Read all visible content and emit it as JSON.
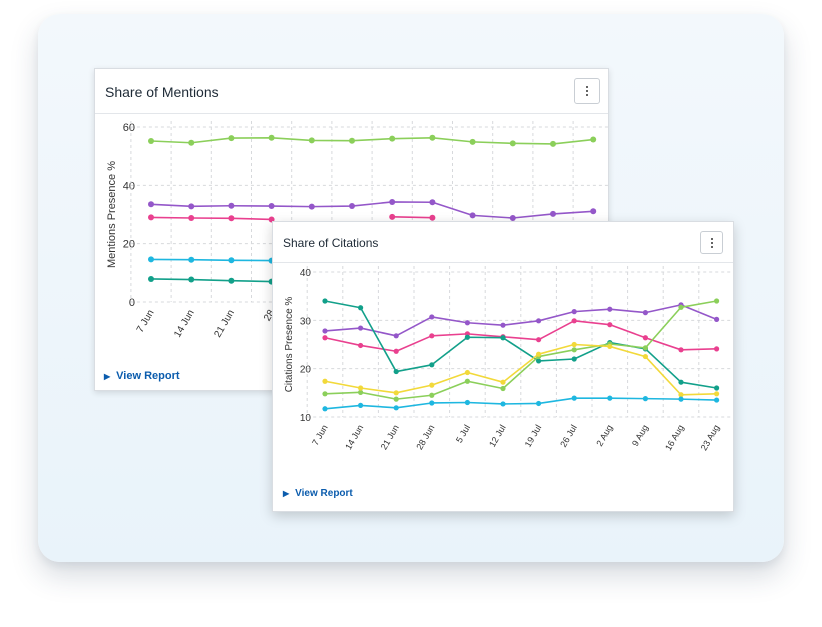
{
  "mentions": {
    "title": "Share of Mentions",
    "view_report": "View Report",
    "menu_icon": "kebab-menu-icon",
    "chart_data": {
      "type": "line",
      "ylabel": "Mentions Presence %",
      "xlabel": "",
      "ylim": [
        0,
        60
      ],
      "yticks": [
        0,
        20,
        40,
        60
      ],
      "grid": true,
      "categories": [
        "7 Jun",
        "14 Jun",
        "21 Jun",
        "28 Jun",
        "5 Jul",
        "12 Jul",
        "19 Jul",
        "26 Jul",
        "2 Aug",
        "9 Aug",
        "16 Aug",
        "23 Aug"
      ],
      "visible_tick_labels": [
        "7 Jun",
        "14 Jun",
        "21 Jun",
        "28"
      ],
      "series": [
        {
          "color": "#8bcf5a",
          "values": [
            55.2,
            54.6,
            56.2,
            56.3,
            55.4,
            55.3,
            56.0,
            56.3,
            54.9,
            54.4,
            54.2,
            55.7
          ]
        },
        {
          "color": "#9457c9",
          "values": [
            33.5,
            32.8,
            33.0,
            32.9,
            32.7,
            32.9,
            34.3,
            34.2,
            29.7,
            28.8,
            30.2,
            31.1
          ]
        },
        {
          "color": "#e9408f",
          "values": [
            29.0,
            28.8,
            28.7,
            28.3,
            null,
            null,
            29.2,
            28.9,
            null,
            null,
            null,
            null
          ]
        },
        {
          "color": "#1eb7e0",
          "values": [
            14.6,
            14.5,
            14.3,
            14.2,
            null,
            null,
            null,
            null,
            null,
            null,
            null,
            null
          ]
        },
        {
          "color": "#12a08a",
          "values": [
            7.9,
            7.7,
            7.3,
            7.0,
            null,
            null,
            null,
            null,
            null,
            null,
            null,
            null
          ]
        }
      ]
    }
  },
  "citations": {
    "title": "Share of Citations",
    "view_report": "View Report",
    "menu_icon": "kebab-menu-icon",
    "chart_data": {
      "type": "line",
      "ylabel": "Citations Presence %",
      "xlabel": "",
      "ylim": [
        10,
        40
      ],
      "yticks": [
        10,
        20,
        30,
        40
      ],
      "grid": true,
      "categories": [
        "7 Jun",
        "14 Jun",
        "21 Jun",
        "28 Jun",
        "5 Jul",
        "12 Jul",
        "19 Jul",
        "26 Jul",
        "2 Aug",
        "9 Aug",
        "16 Aug",
        "23 Aug"
      ],
      "series": [
        {
          "color": "#9457c9",
          "values": [
            27.8,
            28.4,
            26.8,
            30.7,
            29.5,
            29.0,
            29.9,
            31.8,
            32.3,
            31.6,
            33.2,
            30.2
          ]
        },
        {
          "color": "#e9408f",
          "values": [
            26.4,
            24.8,
            23.6,
            26.8,
            27.2,
            26.6,
            26.0,
            29.9,
            29.1,
            26.4,
            23.9,
            24.1
          ]
        },
        {
          "color": "#12a08a",
          "values": [
            34.0,
            32.6,
            19.4,
            20.8,
            26.5,
            26.4,
            21.6,
            22.0,
            25.4,
            24.1,
            17.2,
            16.0
          ]
        },
        {
          "color": "#8bcf5a",
          "values": [
            14.8,
            15.1,
            13.7,
            14.5,
            17.4,
            15.9,
            22.5,
            23.9,
            25.1,
            24.3,
            32.7,
            34.0
          ]
        },
        {
          "color": "#f2d93a",
          "values": [
            17.4,
            16.0,
            15.0,
            16.6,
            19.2,
            17.2,
            23.0,
            25.0,
            24.6,
            22.5,
            14.6,
            14.8
          ]
        },
        {
          "color": "#1eb7e0",
          "values": [
            11.7,
            12.4,
            11.9,
            12.9,
            13.0,
            12.7,
            12.8,
            13.9,
            13.9,
            13.8,
            13.7,
            13.5
          ]
        }
      ]
    }
  }
}
